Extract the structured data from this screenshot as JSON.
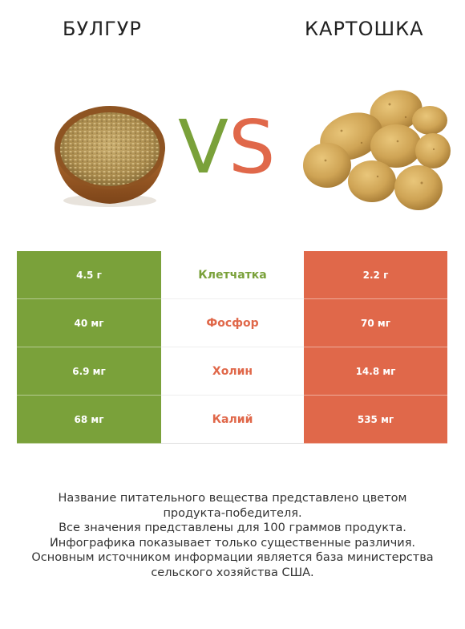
{
  "titles": {
    "left": "БУЛГУР",
    "right": "КАРТОШКА"
  },
  "vs": {
    "v": "V",
    "s": "S"
  },
  "colors": {
    "left": "#7aa13a",
    "right": "#e0684a"
  },
  "images": {
    "left": "bulgur-bowl-image",
    "right": "potatoes-image"
  },
  "rows": [
    {
      "left": "4.5 г",
      "label": "Клетчатка",
      "right": "2.2 г",
      "winner": "left"
    },
    {
      "left": "40 мг",
      "label": "Фосфор",
      "right": "70 мг",
      "winner": "right"
    },
    {
      "left": "6.9 мг",
      "label": "Холин",
      "right": "14.8 мг",
      "winner": "right"
    },
    {
      "left": "68 мг",
      "label": "Калий",
      "right": "535 мг",
      "winner": "right"
    }
  ],
  "footnote": [
    "Название питательного вещества представлено цветом",
    "продукта-победителя.",
    "Все значения представлены для 100 граммов продукта.",
    "Инфографика показывает только существенные различия.",
    "Основным источником информации является база министерства",
    "сельского хозяйства США."
  ]
}
